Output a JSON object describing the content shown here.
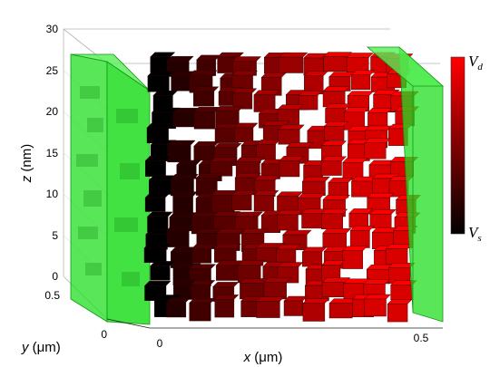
{
  "chart_data": {
    "type": "3d-voxel",
    "axes": {
      "x": {
        "label_var": "x",
        "label_unit": " (μm)",
        "ticks": [
          0,
          0.5
        ]
      },
      "y": {
        "label_var": "y",
        "label_unit": " (μm)",
        "ticks": [
          0,
          0.5
        ]
      },
      "z": {
        "label_var": "z",
        "label_unit": " (nm)",
        "ticks": [
          0,
          5,
          10,
          15,
          20,
          25,
          30
        ]
      }
    },
    "colorbar": {
      "top_label": "V",
      "top_sub": "d",
      "bottom_label": "V",
      "bottom_sub": "s",
      "colors": [
        "#000000",
        "#ff0000"
      ]
    },
    "contacts": {
      "color": "#22dd22"
    },
    "grid": true
  }
}
